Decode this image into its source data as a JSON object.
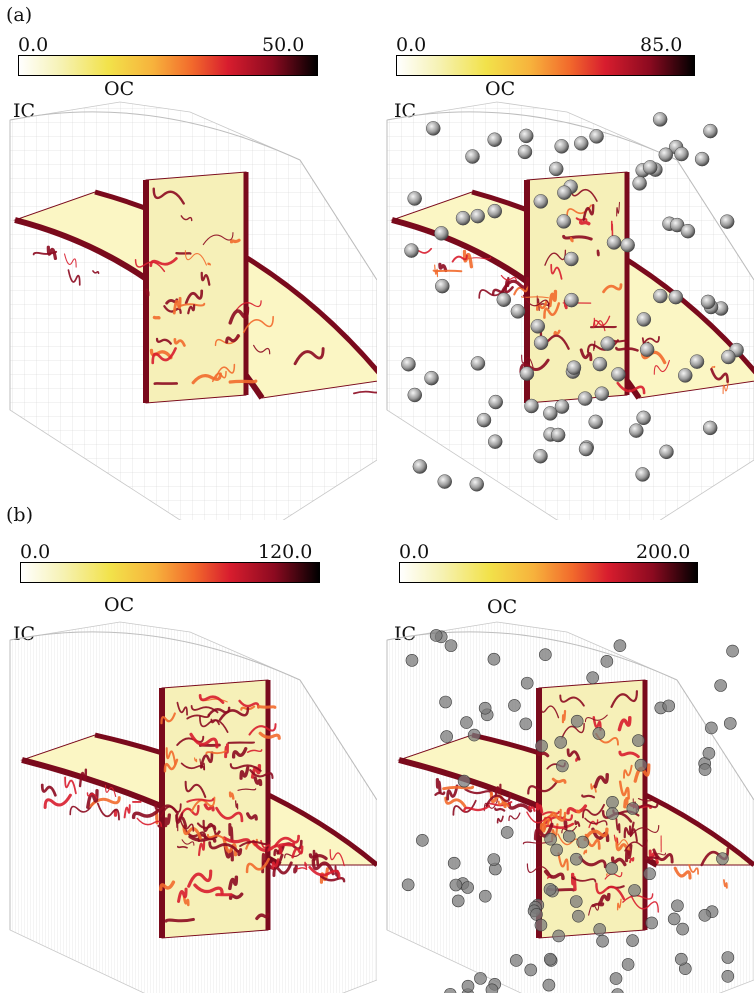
{
  "panels": {
    "a": {
      "label": "(a)",
      "left": {
        "cbar_min": "0.0",
        "cbar_max": "50.0",
        "ic": "IC",
        "oc": "OC",
        "particles": false
      },
      "right": {
        "cbar_min": "0.0",
        "cbar_max": "85.0",
        "ic": "IC",
        "oc": "OC",
        "particles": true
      }
    },
    "b": {
      "label": "(b)",
      "left": {
        "cbar_min": "0.0",
        "cbar_max": "120.0",
        "ic": "IC",
        "oc": "OC",
        "particles": false
      },
      "right": {
        "cbar_min": "0.0",
        "cbar_max": "200.0",
        "ic": "IC",
        "oc": "OC",
        "particles": true
      }
    }
  },
  "colormap": [
    "#ffffff",
    "#f6f2b4",
    "#f2e24a",
    "#f7b23c",
    "#f26a2c",
    "#d81d2e",
    "#8c0a20",
    "#000000"
  ]
}
